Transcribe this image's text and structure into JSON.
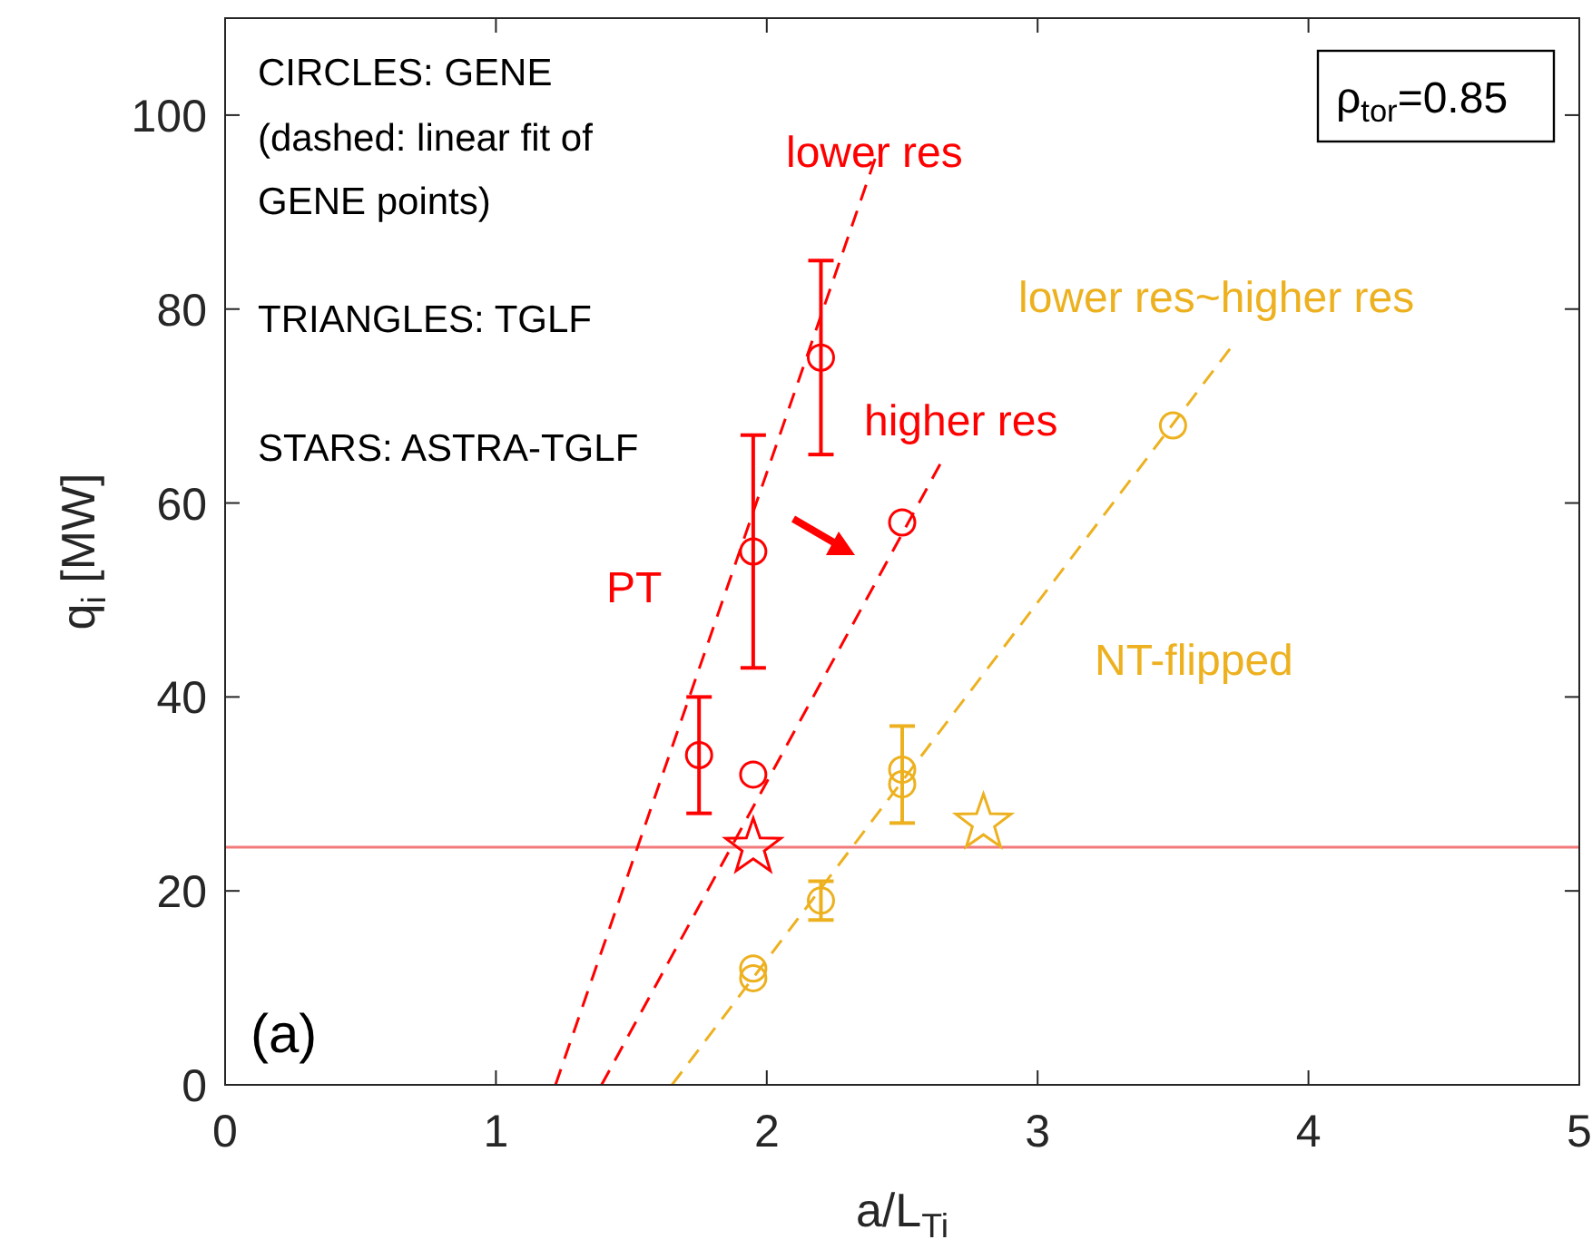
{
  "chart_data": {
    "type": "scatter",
    "xlabel": "a/L$_{Ti}$",
    "ylabel": "q$_{i}$ [MW]",
    "xlim": [
      0,
      5
    ],
    "xticks": [
      0,
      1,
      2,
      3,
      4,
      5
    ],
    "ylim": [
      0,
      110
    ],
    "yticks": [
      0,
      20,
      40,
      60,
      80,
      100
    ],
    "grid": false,
    "series": [
      {
        "marker": "circle",
        "color": "#ff0000",
        "x": [
          1.75,
          1.95,
          2.2
        ],
        "values": [
          34,
          55,
          75
        ],
        "errors": [
          [
            28,
            40
          ],
          [
            43,
            67
          ],
          [
            65,
            85
          ]
        ]
      },
      {
        "type": "line",
        "marker": "none",
        "line_style": "dashed",
        "color": "#ff0000",
        "x": [
          1.22,
          2.4
        ],
        "values": [
          0,
          95.5
        ]
      },
      {
        "marker": "circle",
        "color": "#ff0000",
        "x": [
          1.95,
          2.5
        ],
        "values": [
          32,
          58
        ]
      },
      {
        "type": "line",
        "marker": "none",
        "line_style": "dashed",
        "color": "#ff0000",
        "x": [
          1.39,
          2.64
        ],
        "values": [
          0,
          64
        ]
      },
      {
        "marker": "circle",
        "color": "#edb120",
        "x": [
          1.95,
          1.95,
          2.2,
          2.5,
          2.5,
          3.5
        ],
        "values": [
          12,
          11,
          19,
          32.5,
          31,
          68
        ],
        "errors": [
          null,
          null,
          [
            17,
            21
          ],
          null,
          [
            27,
            37
          ],
          null
        ]
      },
      {
        "type": "line",
        "marker": "none",
        "line_style": "dashed",
        "color": "#edb120",
        "x": [
          1.65,
          3.71
        ],
        "values": [
          0,
          75.9
        ]
      },
      {
        "marker": "star",
        "color": "#ff0000",
        "x": [
          1.95
        ],
        "values": [
          24.5
        ]
      },
      {
        "marker": "star",
        "color": "#edb120",
        "x": [
          2.8
        ],
        "values": [
          27
        ]
      }
    ],
    "ref_lines": [
      {
        "axis": "y",
        "value": 24.5,
        "color": "#f37a7a"
      }
    ],
    "annotations": [
      "lower res",
      "higher res",
      "PT",
      "lower res~higher res",
      "NT-flipped",
      "CIRCLES: GENE",
      "(dashed: linear fit of",
      "GENE points)",
      "TRIANGLES: TGLF",
      "STARS: ASTRA-TGLF",
      "(a)",
      "ρ$_{tor}$=0.85"
    ]
  }
}
